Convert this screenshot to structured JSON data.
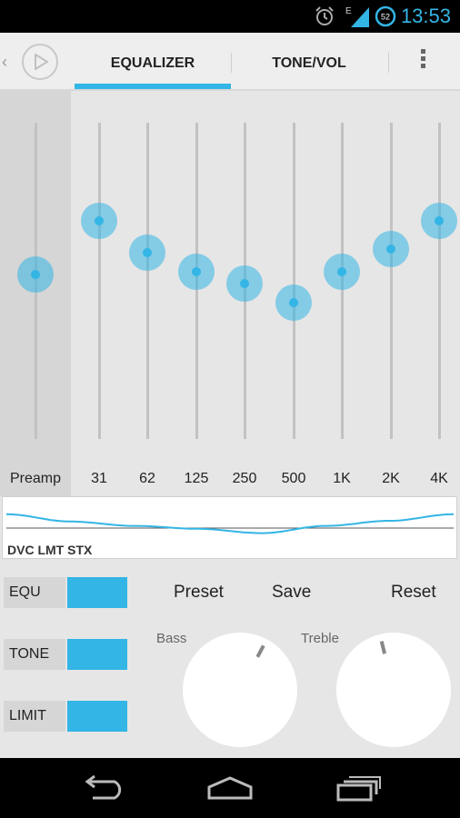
{
  "status_bar": {
    "time": "13:53",
    "battery_level": "52",
    "network": "E"
  },
  "action_bar": {
    "tabs": [
      {
        "label": "EQUALIZER",
        "active": true
      },
      {
        "label": "TONE/VOL",
        "active": false
      }
    ]
  },
  "equalizer": {
    "bands": [
      {
        "label": "Preamp",
        "level": 0.52
      },
      {
        "label": "31",
        "level": 0.69
      },
      {
        "label": "62",
        "level": 0.59
      },
      {
        "label": "125",
        "level": 0.53
      },
      {
        "label": "250",
        "level": 0.49
      },
      {
        "label": "500",
        "level": 0.43
      },
      {
        "label": "1K",
        "level": 0.53
      },
      {
        "label": "2K",
        "level": 0.6
      },
      {
        "label": "4K",
        "level": 0.69
      }
    ]
  },
  "curve_panel": {
    "mode_label": "DVC LMT STX"
  },
  "toggles": [
    {
      "label": "EQU",
      "on": true
    },
    {
      "label": "TONE",
      "on": true
    },
    {
      "label": "LIMIT",
      "on": true
    }
  ],
  "actions": {
    "preset": "Preset",
    "save": "Save",
    "reset": "Reset"
  },
  "knobs": {
    "bass_label": "Bass",
    "treble_label": "Treble"
  },
  "colors": {
    "accent": "#33b5e5"
  }
}
